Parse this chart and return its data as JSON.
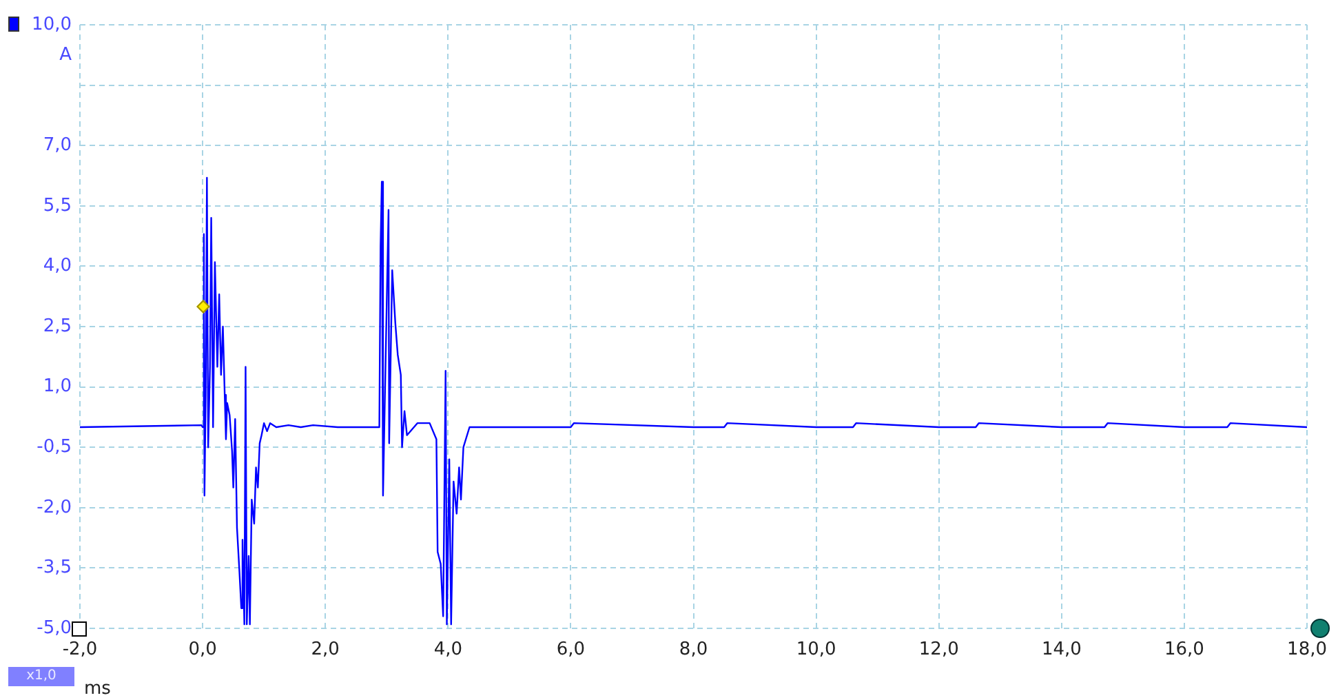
{
  "chart_data": {
    "type": "line",
    "xlabel": "ms",
    "ylabel": "A",
    "annotations": [
      "x1,0"
    ],
    "xlim": [
      -2,
      18
    ],
    "ylim": [
      -5,
      10
    ],
    "xticks": [
      {
        "value": -2,
        "label": "-2,0"
      },
      {
        "value": 0,
        "label": "0,0"
      },
      {
        "value": 2,
        "label": "2,0"
      },
      {
        "value": 4,
        "label": "4,0"
      },
      {
        "value": 6,
        "label": "6,0"
      },
      {
        "value": 8,
        "label": "8,0"
      },
      {
        "value": 10,
        "label": "10,0"
      },
      {
        "value": 12,
        "label": "12,0"
      },
      {
        "value": 14,
        "label": "14,0"
      },
      {
        "value": 16,
        "label": "16,0"
      },
      {
        "value": 18,
        "label": "18,0"
      }
    ],
    "yticks": [
      {
        "value": -5,
        "label": "-5,0"
      },
      {
        "value": -3.5,
        "label": "-3,5"
      },
      {
        "value": -2,
        "label": "-2,0"
      },
      {
        "value": -0.5,
        "label": "-0,5"
      },
      {
        "value": 1,
        "label": "1,0"
      },
      {
        "value": 2.5,
        "label": "2,5"
      },
      {
        "value": 4,
        "label": "4,0"
      },
      {
        "value": 5.5,
        "label": "5,5"
      },
      {
        "value": 7,
        "label": "7,0"
      },
      {
        "value": 8.5,
        "label": null
      },
      {
        "value": 10,
        "label": "10,0"
      }
    ],
    "grid": true,
    "marker": "none",
    "line_style": "solid",
    "series": [
      {
        "color": "#0000ff",
        "x": [
          -2,
          -0.02,
          0,
          0.02,
          0.03,
          0.05,
          0.07,
          0.09,
          0.12,
          0.14,
          0.17,
          0.2,
          0.24,
          0.27,
          0.3,
          0.33,
          0.36,
          0.38,
          0.4,
          0.44,
          0.48,
          0.5,
          0.53,
          0.56,
          0.6,
          0.63,
          0.65,
          0.68,
          0.7,
          0.72,
          0.75,
          0.77,
          0.8,
          0.84,
          0.87,
          0.9,
          0.93,
          0.96,
          1,
          1.05,
          1.1,
          1.2,
          1.4,
          1.6,
          1.8,
          2.2,
          2.6,
          2.88,
          2.9,
          2.92,
          2.94,
          2.97,
          3.03,
          3.04,
          3.09,
          3.14,
          3.18,
          3.23,
          3.25,
          3.29,
          3.33,
          3.5,
          3.7,
          3.81,
          3.83,
          3.88,
          3.92,
          3.96,
          3.98,
          4.02,
          4.05,
          4.09,
          4.14,
          4.18,
          4.21,
          4.25,
          4.29,
          4.35,
          5,
          6,
          6.05,
          8,
          8.5,
          8.55,
          10,
          10.6,
          10.65,
          12,
          12.6,
          12.65,
          14,
          14.7,
          14.75,
          16,
          16.7,
          16.75,
          18
        ],
        "values": [
          0,
          0.05,
          0,
          4.8,
          -1.7,
          0.8,
          6.2,
          -0.5,
          1.5,
          5.2,
          0,
          4.1,
          1.5,
          3.3,
          1.3,
          2.5,
          0.8,
          -0.3,
          0.6,
          0.3,
          -0.6,
          -1.5,
          0.2,
          -2.5,
          -3.6,
          -4.5,
          -2.8,
          -4.9,
          1.5,
          -4.9,
          -3.2,
          -4.9,
          -1.8,
          -2.4,
          -1,
          -1.5,
          -0.4,
          -0.2,
          0.1,
          -0.1,
          0.1,
          0,
          0.05,
          0,
          0.05,
          0,
          0,
          0,
          4.5,
          6.1,
          -1.7,
          0.7,
          5.4,
          -0.4,
          3.9,
          2.6,
          1.8,
          1.3,
          -0.5,
          0.4,
          -0.2,
          0.1,
          0.1,
          -0.3,
          -3.1,
          -3.4,
          -4.7,
          1.4,
          -4.9,
          -0.8,
          -4.9,
          -1.35,
          -2.15,
          -1,
          -1.8,
          -0.5,
          -0.3,
          0,
          0,
          0,
          0.1,
          0,
          0,
          0.1,
          0,
          0,
          0.1,
          0,
          0,
          0.1,
          0,
          0,
          0.1,
          0,
          0,
          0.1,
          0
        ]
      }
    ]
  }
}
